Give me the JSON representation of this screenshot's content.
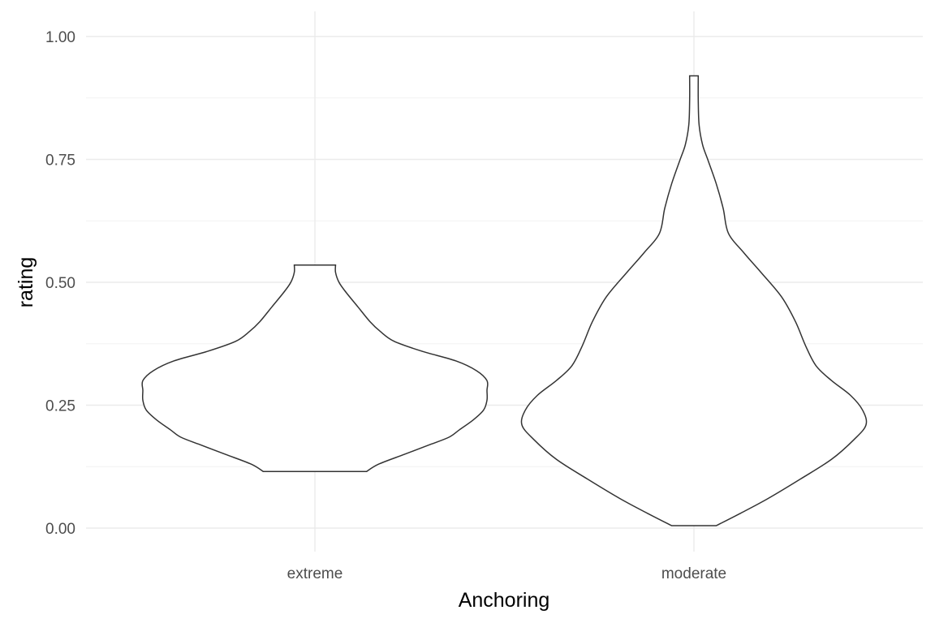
{
  "chart_data": {
    "type": "violin",
    "xlabel": "Anchoring",
    "ylabel": "rating",
    "categories": [
      "extreme",
      "moderate"
    ],
    "ylim": [
      0,
      1
    ],
    "yticks": [
      0,
      0.25,
      0.5,
      0.75,
      1.0
    ],
    "ytick_labels": [
      "0.00",
      "0.25",
      "0.50",
      "0.75",
      "1.00"
    ],
    "grid": true,
    "legend": "none",
    "series": [
      {
        "category": "extreme",
        "min": 0.115,
        "max": 0.535,
        "density": [
          [
            0.115,
            0.3
          ],
          [
            0.13,
            0.37
          ],
          [
            0.15,
            0.52
          ],
          [
            0.17,
            0.67
          ],
          [
            0.185,
            0.78
          ],
          [
            0.2,
            0.84
          ],
          [
            0.22,
            0.92
          ],
          [
            0.24,
            0.98
          ],
          [
            0.26,
            1.0
          ],
          [
            0.28,
            1.0
          ],
          [
            0.3,
            1.0
          ],
          [
            0.32,
            0.94
          ],
          [
            0.34,
            0.82
          ],
          [
            0.36,
            0.62
          ],
          [
            0.38,
            0.46
          ],
          [
            0.4,
            0.38
          ],
          [
            0.42,
            0.32
          ],
          [
            0.45,
            0.25
          ],
          [
            0.48,
            0.18
          ],
          [
            0.5,
            0.14
          ],
          [
            0.52,
            0.12
          ],
          [
            0.535,
            0.12
          ]
        ]
      },
      {
        "category": "moderate",
        "min": 0.005,
        "max": 0.92,
        "density": [
          [
            0.005,
            0.13
          ],
          [
            0.03,
            0.27
          ],
          [
            0.06,
            0.43
          ],
          [
            0.1,
            0.62
          ],
          [
            0.14,
            0.8
          ],
          [
            0.18,
            0.93
          ],
          [
            0.21,
            1.0
          ],
          [
            0.24,
            0.98
          ],
          [
            0.27,
            0.91
          ],
          [
            0.3,
            0.8
          ],
          [
            0.33,
            0.71
          ],
          [
            0.37,
            0.65
          ],
          [
            0.42,
            0.59
          ],
          [
            0.47,
            0.51
          ],
          [
            0.52,
            0.39
          ],
          [
            0.56,
            0.29
          ],
          [
            0.6,
            0.2
          ],
          [
            0.65,
            0.17
          ],
          [
            0.7,
            0.13
          ],
          [
            0.75,
            0.08
          ],
          [
            0.78,
            0.05
          ],
          [
            0.82,
            0.03
          ],
          [
            0.87,
            0.025
          ],
          [
            0.92,
            0.025
          ]
        ]
      }
    ]
  },
  "colors": {
    "violin_fill": "#ffffff",
    "violin_stroke": "#333333",
    "grid_major": "#ebebeb",
    "grid_minor": "#f2f2f2",
    "tick_text": "#4d4d4d",
    "title_text": "#000000"
  }
}
